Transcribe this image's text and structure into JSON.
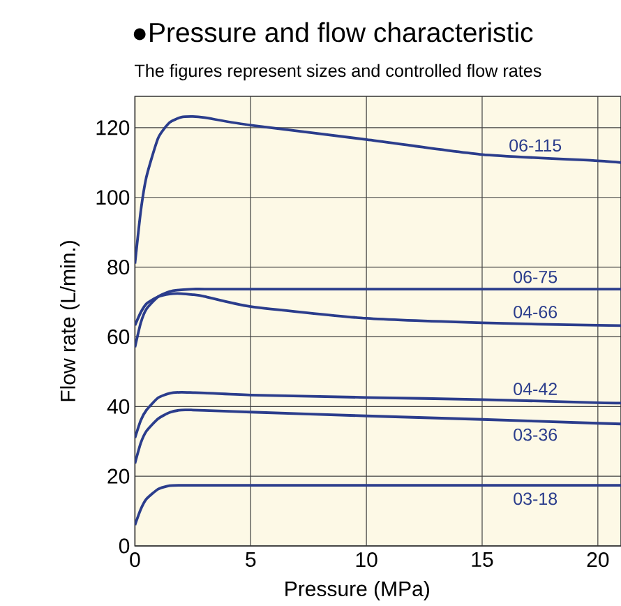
{
  "chart_data": {
    "type": "line",
    "title": "●Pressure and flow characteristic",
    "subtitle": "The figures represent sizes and controlled flow rates",
    "xlabel": "Pressure (MPa)",
    "ylabel": "Flow rate (L/min.)",
    "x": [
      0,
      0.25,
      0.5,
      1,
      1.5,
      2,
      2.5,
      3,
      5,
      10,
      15,
      20,
      21
    ],
    "series": [
      {
        "name": "06-115",
        "color": "#2b3d8c",
        "values": [
          81,
          96,
          106,
          117,
          121.5,
          123,
          123.2,
          122.9,
          120.7,
          116.6,
          112.3,
          110.5,
          110
        ]
      },
      {
        "name": "06-75",
        "color": "#2b3d8c",
        "values": [
          57,
          64,
          68,
          71.5,
          73,
          73.5,
          73.7,
          73.7,
          73.7,
          73.7,
          73.7,
          73.7,
          73.7
        ]
      },
      {
        "name": "04-66",
        "color": "#2b3d8c",
        "values": [
          63.3,
          67,
          69.5,
          71.5,
          72.3,
          72.4,
          72.1,
          71.6,
          68.7,
          65.3,
          64,
          63.3,
          63.2
        ]
      },
      {
        "name": "04-42",
        "color": "#2b3d8c",
        "values": [
          31,
          36,
          39,
          42.5,
          43.8,
          44.1,
          44,
          43.9,
          43.3,
          42.6,
          42,
          41.1,
          41
        ]
      },
      {
        "name": "03-36",
        "color": "#2b3d8c",
        "values": [
          23.7,
          29.5,
          33,
          36.5,
          38.3,
          39,
          39,
          38.9,
          38.4,
          37.3,
          36.3,
          35.2,
          35
        ]
      },
      {
        "name": "03-18",
        "color": "#2b3d8c",
        "values": [
          6,
          10.5,
          13.5,
          16.3,
          17.3,
          17.4,
          17.4,
          17.4,
          17.4,
          17.4,
          17.4,
          17.4,
          17.4
        ]
      }
    ],
    "xlim": [
      0,
      21
    ],
    "ylim": [
      0,
      129
    ],
    "xticks": [
      0,
      5,
      10,
      15,
      20
    ],
    "yticks": [
      0,
      20,
      40,
      60,
      80,
      100,
      120
    ],
    "grid": true,
    "marker": "none",
    "line_style": "solid"
  }
}
